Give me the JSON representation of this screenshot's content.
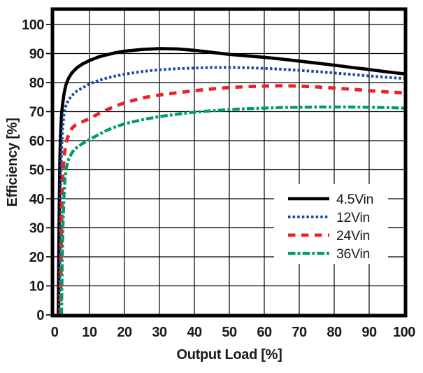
{
  "figure": {
    "background": "#ffffff",
    "border_color": "#000000",
    "grid_color": "#000000",
    "text_color": "#1a1a1a",
    "legend_background": "#ffffff"
  },
  "chart_data": {
    "type": "line",
    "title": "",
    "xlabel": "Output Load [%]",
    "ylabel": "Efficiency [%]",
    "xlim": [
      0,
      100
    ],
    "ylim": [
      0,
      105
    ],
    "grid": true,
    "legend_position": "lower-right",
    "x_ticks": [
      0,
      10,
      20,
      30,
      40,
      50,
      60,
      70,
      80,
      90,
      100
    ],
    "y_ticks": [
      0,
      10,
      20,
      30,
      40,
      50,
      60,
      70,
      80,
      90,
      100
    ],
    "series": [
      {
        "name": "4.5Vin",
        "color": "#000000",
        "style": "solid",
        "points": [
          [
            1.1,
            0
          ],
          [
            1.2,
            18
          ],
          [
            1.35,
            38
          ],
          [
            1.5,
            52
          ],
          [
            1.7,
            61
          ],
          [
            2,
            69
          ],
          [
            2.3,
            72.5
          ],
          [
            2.7,
            76
          ],
          [
            3.2,
            79
          ],
          [
            4,
            81.5
          ],
          [
            5,
            83.4
          ],
          [
            6.5,
            85.2
          ],
          [
            8,
            86.4
          ],
          [
            10,
            87.6
          ],
          [
            12.5,
            88.8
          ],
          [
            15,
            89.6
          ],
          [
            17.5,
            90.3
          ],
          [
            20,
            90.8
          ],
          [
            25,
            91.4
          ],
          [
            30,
            91.7
          ],
          [
            35,
            91.6
          ],
          [
            40,
            91.1
          ],
          [
            45,
            90.4
          ],
          [
            50,
            89.7
          ],
          [
            55,
            89.2
          ],
          [
            60,
            88.7
          ],
          [
            65,
            88.1
          ],
          [
            70,
            87.4
          ],
          [
            75,
            86.7
          ],
          [
            80,
            86.0
          ],
          [
            85,
            85.2
          ],
          [
            90,
            84.5
          ],
          [
            95,
            83.7
          ],
          [
            100,
            83.0
          ]
        ]
      },
      {
        "name": "12Vin",
        "color": "#1b4c9b",
        "style": "dotted",
        "points": [
          [
            1.4,
            0
          ],
          [
            1.5,
            15
          ],
          [
            1.65,
            35
          ],
          [
            1.8,
            48
          ],
          [
            2,
            57
          ],
          [
            2.3,
            64
          ],
          [
            2.7,
            69
          ],
          [
            3.2,
            71.8
          ],
          [
            4,
            74
          ],
          [
            5,
            75.6
          ],
          [
            6.5,
            77.2
          ],
          [
            8,
            78.2
          ],
          [
            10,
            79.5
          ],
          [
            12.5,
            80.7
          ],
          [
            15,
            81.6
          ],
          [
            17.5,
            82.3
          ],
          [
            20,
            82.9
          ],
          [
            25,
            83.8
          ],
          [
            30,
            84.4
          ],
          [
            35,
            84.8
          ],
          [
            40,
            85.0
          ],
          [
            45,
            85.2
          ],
          [
            50,
            85.2
          ],
          [
            55,
            85.1
          ],
          [
            60,
            84.9
          ],
          [
            65,
            84.6
          ],
          [
            70,
            84.2
          ],
          [
            75,
            83.8
          ],
          [
            80,
            83.3
          ],
          [
            85,
            82.8
          ],
          [
            90,
            82.3
          ],
          [
            95,
            81.8
          ],
          [
            100,
            81.4
          ]
        ]
      },
      {
        "name": "24Vin",
        "color": "#ec2027",
        "style": "dashed",
        "points": [
          [
            1.7,
            0
          ],
          [
            1.8,
            12
          ],
          [
            1.95,
            28
          ],
          [
            2.15,
            40
          ],
          [
            2.4,
            49
          ],
          [
            2.7,
            54
          ],
          [
            3.1,
            58
          ],
          [
            3.6,
            60.5
          ],
          [
            4.2,
            62.5
          ],
          [
            5,
            64.3
          ],
          [
            6,
            65.4
          ],
          [
            8,
            66.5
          ],
          [
            10,
            67.6
          ],
          [
            12.5,
            69.2
          ],
          [
            15,
            70.7
          ],
          [
            17.5,
            71.9
          ],
          [
            20,
            73.0
          ],
          [
            25,
            74.7
          ],
          [
            30,
            75.7
          ],
          [
            35,
            76.5
          ],
          [
            40,
            77.2
          ],
          [
            45,
            77.8
          ],
          [
            50,
            78.3
          ],
          [
            55,
            78.6
          ],
          [
            60,
            78.8
          ],
          [
            65,
            78.9
          ],
          [
            70,
            78.8
          ],
          [
            75,
            78.5
          ],
          [
            80,
            78.1
          ],
          [
            85,
            77.7
          ],
          [
            90,
            77.2
          ],
          [
            95,
            76.8
          ],
          [
            100,
            76.4
          ]
        ]
      },
      {
        "name": "36Vin",
        "color": "#009e5f",
        "style": "dash-dot",
        "points": [
          [
            2.0,
            0
          ],
          [
            2.1,
            10
          ],
          [
            2.25,
            22
          ],
          [
            2.45,
            33
          ],
          [
            2.7,
            41
          ],
          [
            3.0,
            47
          ],
          [
            3.4,
            50.7
          ],
          [
            4,
            53.5
          ],
          [
            5,
            55.9
          ],
          [
            6,
            57.3
          ],
          [
            8,
            59.0
          ],
          [
            10,
            60.4
          ],
          [
            12.5,
            62.0
          ],
          [
            15,
            63.6
          ],
          [
            17.5,
            64.8
          ],
          [
            20,
            65.8
          ],
          [
            25,
            67.2
          ],
          [
            30,
            68.3
          ],
          [
            35,
            69.1
          ],
          [
            40,
            69.8
          ],
          [
            45,
            70.3
          ],
          [
            50,
            70.7
          ],
          [
            55,
            71.0
          ],
          [
            60,
            71.2
          ],
          [
            65,
            71.4
          ],
          [
            70,
            71.5
          ],
          [
            75,
            71.6
          ],
          [
            80,
            71.6
          ],
          [
            85,
            71.6
          ],
          [
            90,
            71.5
          ],
          [
            95,
            71.4
          ],
          [
            100,
            71.2
          ]
        ]
      }
    ]
  }
}
